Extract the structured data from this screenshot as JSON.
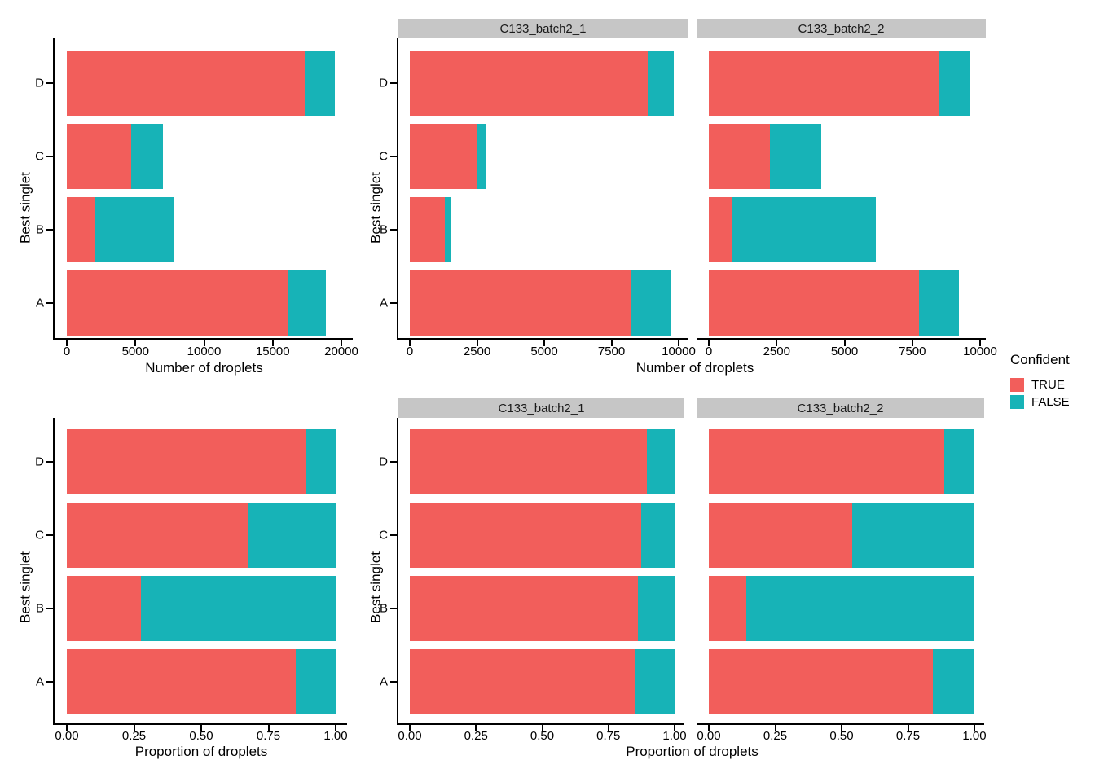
{
  "legend": {
    "title": "Confident",
    "entries": [
      {
        "label": "TRUE",
        "color": "#F25E5B"
      },
      {
        "label": "FALSE",
        "color": "#17B3B7"
      }
    ]
  },
  "colors": {
    "true_fill": "#F25E5B",
    "false_fill": "#17B3B7",
    "strip_bg": "#C6C6C6",
    "axis": "#000000"
  },
  "chart_data": [
    {
      "type": "bar",
      "orientation": "horizontal",
      "stacked": true,
      "row": "counts",
      "xlabel": "Number of droplets",
      "ylabel": "Best singlet",
      "categories": [
        "D",
        "C",
        "B",
        "A"
      ],
      "grid": false,
      "legend_position": "right",
      "panels": [
        {
          "facet": "",
          "xlim": [
            0,
            20000
          ],
          "xticks": [
            0,
            5000,
            10000,
            15000,
            20000
          ],
          "xtick_labels": [
            "0",
            "5000",
            "10000",
            "15000",
            "20000"
          ],
          "series": [
            {
              "name": "TRUE",
              "values": [
                17300,
                4700,
                2100,
                16100
              ]
            },
            {
              "name": "FALSE",
              "values": [
                2200,
                2300,
                5650,
                2800
              ]
            }
          ]
        },
        {
          "facet": "C133_batch2_1",
          "xlim": [
            0,
            10000
          ],
          "xticks": [
            0,
            2500,
            5000,
            7500,
            10000
          ],
          "xtick_labels": [
            "0",
            "2500",
            "5000",
            "7500",
            "10000"
          ],
          "series": [
            {
              "name": "TRUE",
              "values": [
                8850,
                2480,
                1300,
                8250
              ]
            },
            {
              "name": "FALSE",
              "values": [
                970,
                370,
                250,
                1450
              ]
            }
          ]
        },
        {
          "facet": "C133_batch2_2",
          "xlim": [
            0,
            10000
          ],
          "xticks": [
            0,
            2500,
            5000,
            7500,
            10000
          ],
          "xtick_labels": [
            "0",
            "2500",
            "5000",
            "7500",
            "10000"
          ],
          "series": [
            {
              "name": "TRUE",
              "values": [
                8490,
                2250,
                840,
                7750
              ]
            },
            {
              "name": "FALSE",
              "values": [
                1140,
                1890,
                5310,
                1460
              ]
            }
          ]
        }
      ]
    },
    {
      "type": "bar",
      "orientation": "horizontal",
      "stacked": true,
      "row": "proportions",
      "xlabel": "Proportion of droplets",
      "ylabel": "Best singlet",
      "categories": [
        "D",
        "C",
        "B",
        "A"
      ],
      "grid": false,
      "legend_position": "right",
      "panels": [
        {
          "facet": "",
          "xlim": [
            0,
            1
          ],
          "xticks": [
            0,
            0.25,
            0.5,
            0.75,
            1
          ],
          "xtick_labels": [
            "0.00",
            "0.25",
            "0.50",
            "0.75",
            "1.00"
          ],
          "series": [
            {
              "name": "TRUE",
              "values": [
                0.89,
                0.675,
                0.275,
                0.85
              ]
            },
            {
              "name": "FALSE",
              "values": [
                0.11,
                0.325,
                0.725,
                0.15
              ]
            }
          ]
        },
        {
          "facet": "C133_batch2_1",
          "xlim": [
            0,
            1
          ],
          "xticks": [
            0,
            0.25,
            0.5,
            0.75,
            1
          ],
          "xtick_labels": [
            "0.00",
            "0.25",
            "0.50",
            "0.75",
            "1.00"
          ],
          "series": [
            {
              "name": "TRUE",
              "values": [
                0.895,
                0.875,
                0.86,
                0.85
              ]
            },
            {
              "name": "FALSE",
              "values": [
                0.105,
                0.125,
                0.14,
                0.15
              ]
            }
          ]
        },
        {
          "facet": "C133_batch2_2",
          "xlim": [
            0,
            1
          ],
          "xticks": [
            0,
            0.25,
            0.5,
            0.75,
            1
          ],
          "xtick_labels": [
            "0.00",
            "0.25",
            "0.50",
            "0.75",
            "1.00"
          ],
          "series": [
            {
              "name": "TRUE",
              "values": [
                0.885,
                0.54,
                0.14,
                0.845
              ]
            },
            {
              "name": "FALSE",
              "values": [
                0.115,
                0.46,
                0.86,
                0.155
              ]
            }
          ]
        }
      ]
    }
  ]
}
